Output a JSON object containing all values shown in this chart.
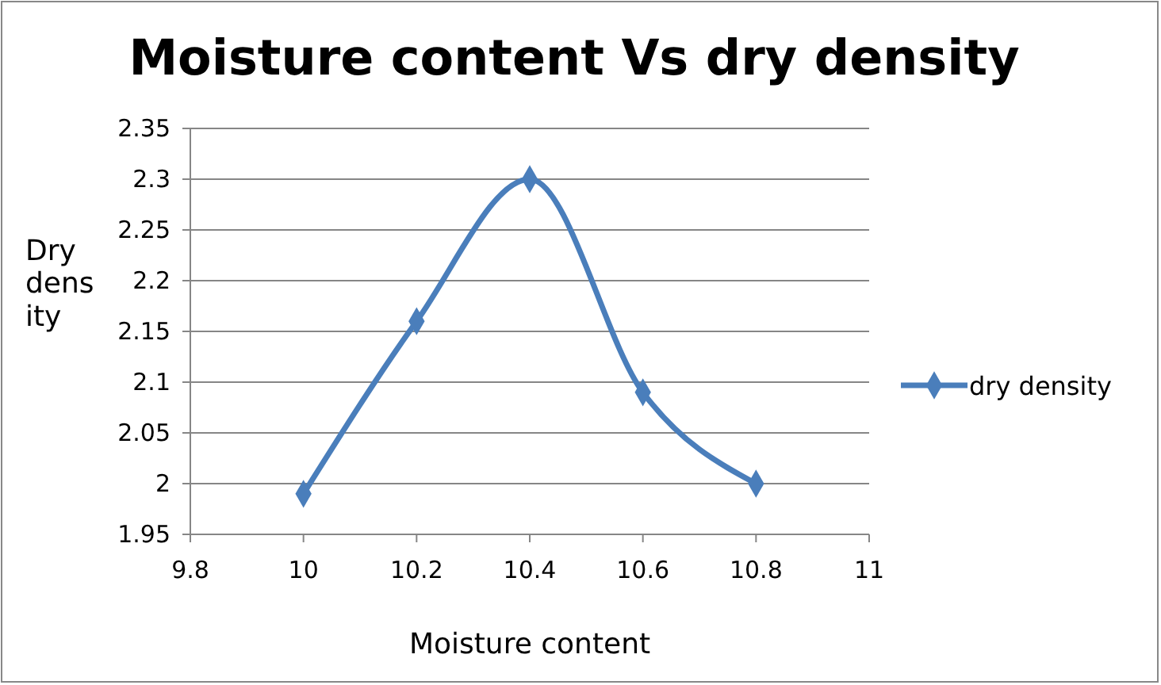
{
  "chart_data": {
    "type": "line",
    "title": "Moisture content Vs dry density",
    "xlabel": "Moisture content",
    "ylabel": "Dry density",
    "x": [
      10,
      10.2,
      10.4,
      10.6,
      10.8
    ],
    "series": [
      {
        "name": "dry density",
        "color": "#4a7ebb",
        "values": [
          1.99,
          2.16,
          2.3,
          2.09,
          2.0
        ]
      }
    ],
    "xlim": [
      9.8,
      11
    ],
    "xticks": [
      9.8,
      10,
      10.2,
      10.4,
      10.6,
      10.8,
      11
    ],
    "ylim": [
      1.95,
      2.35
    ],
    "yticks": [
      1.95,
      2,
      2.05,
      2.1,
      2.15,
      2.2,
      2.25,
      2.3,
      2.35
    ],
    "grid": "y",
    "legend": "right",
    "marker": "diamond",
    "line_style": "solid"
  }
}
